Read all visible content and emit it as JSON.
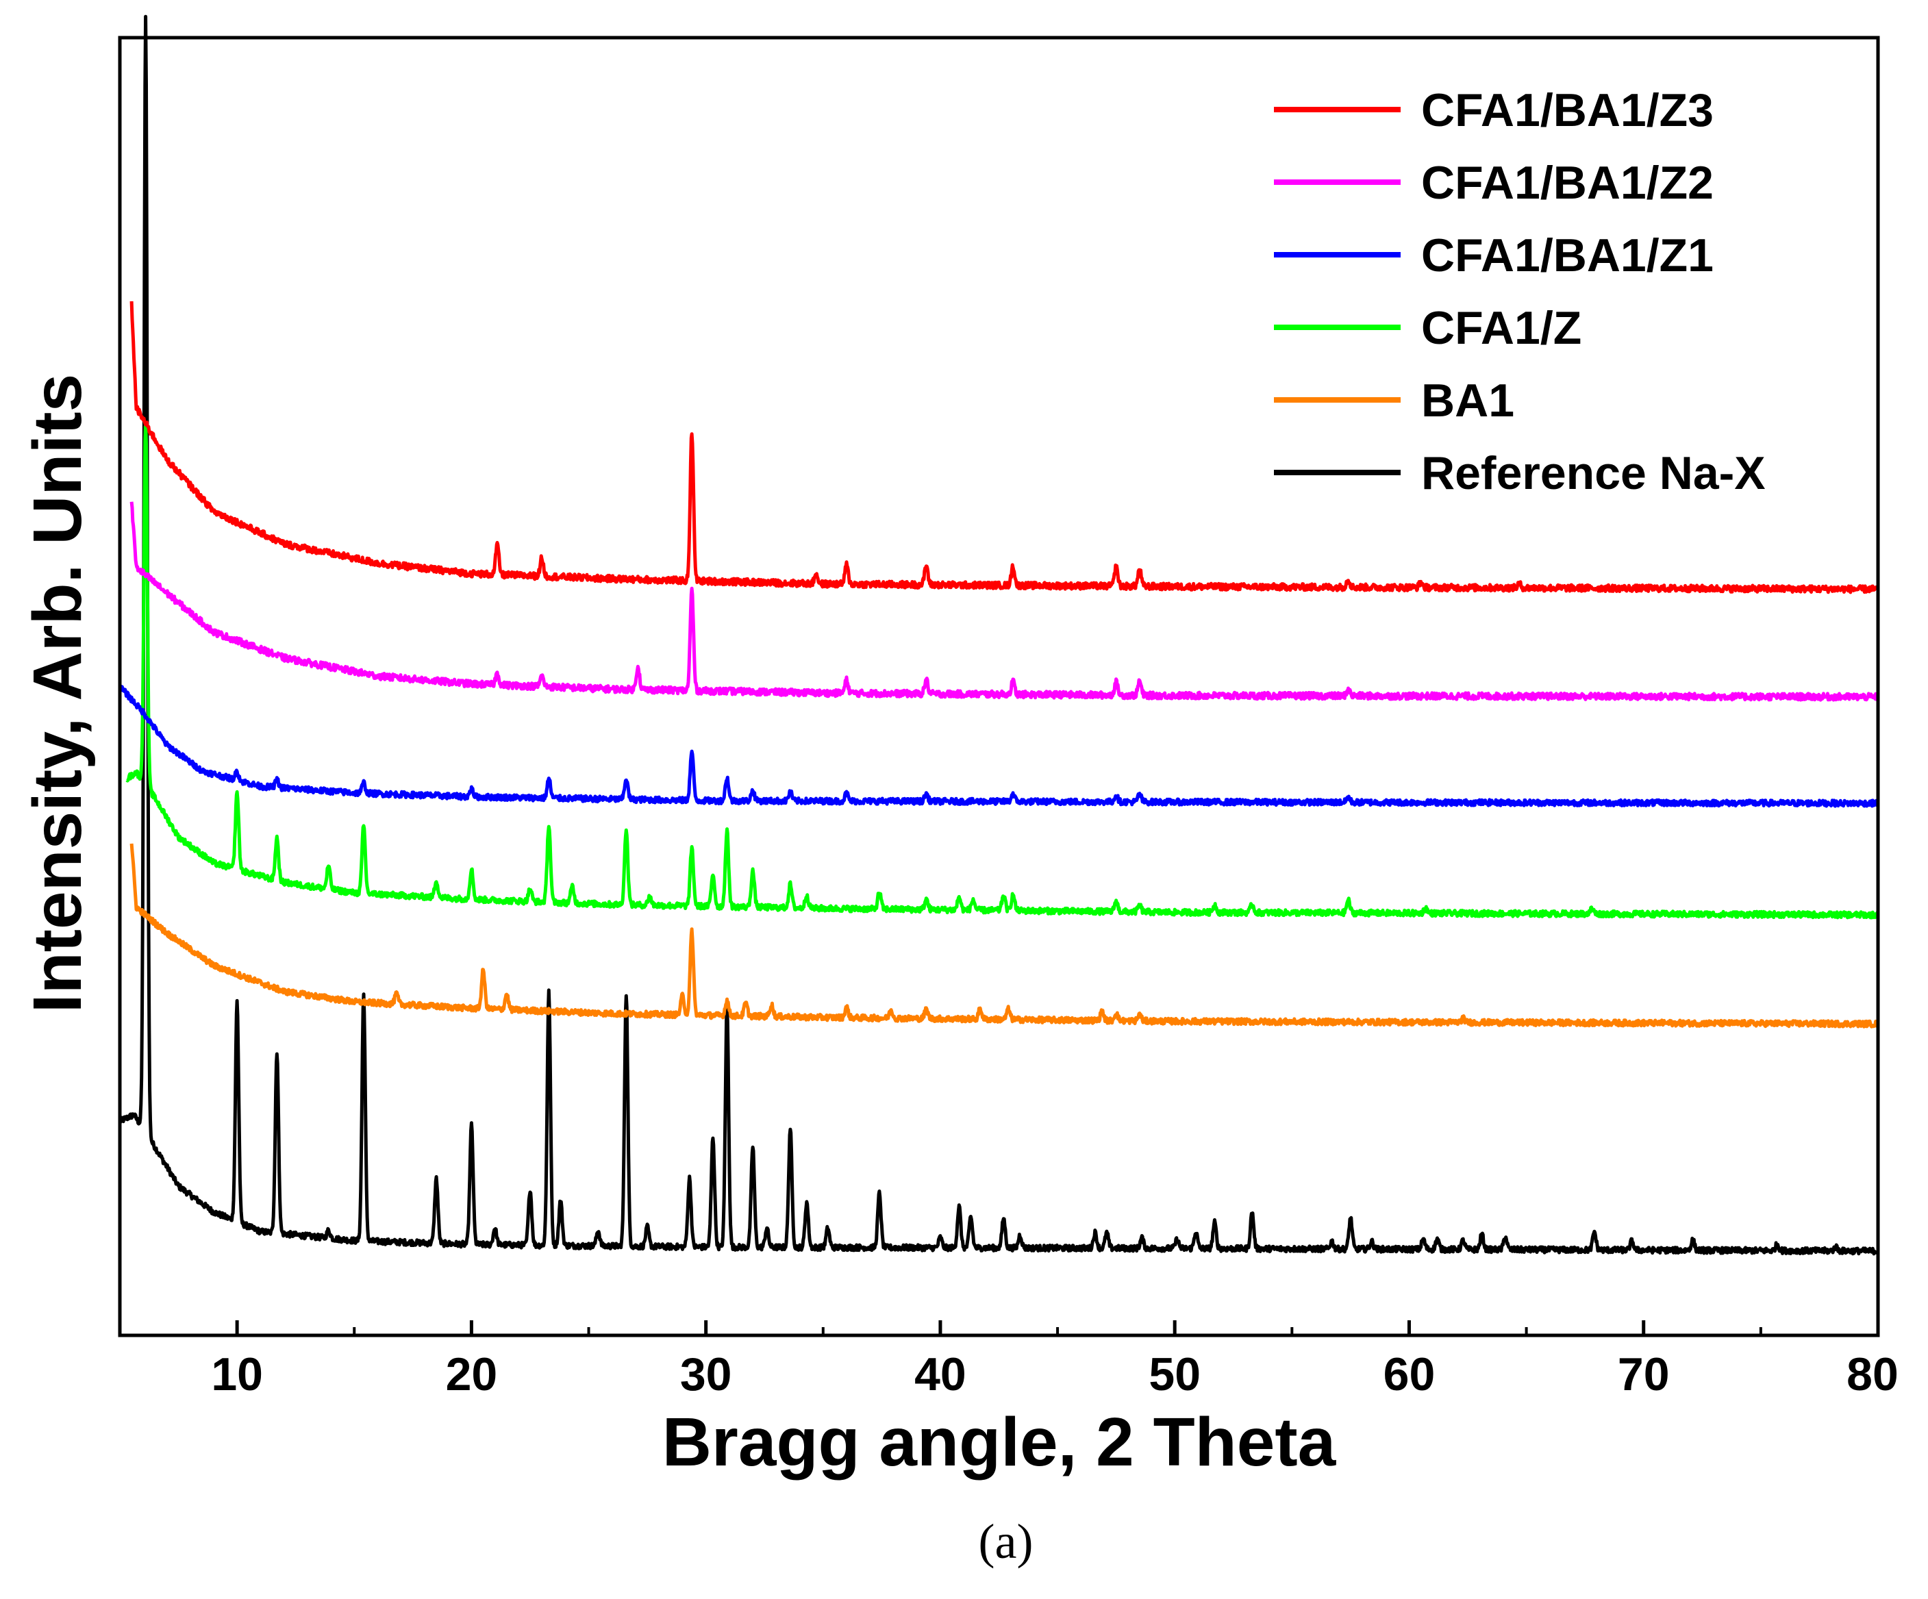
{
  "chart_data": {
    "type": "line",
    "title": "",
    "xlabel": "Bragg angle, 2 Theta",
    "ylabel": "Intensity, Arb. Units",
    "caption": "(a)",
    "xlim": [
      5,
      80
    ],
    "ylim": [
      0,
      100
    ],
    "xticks": [
      10,
      20,
      30,
      40,
      50,
      60,
      70,
      80
    ],
    "xtick_labels": [
      "10",
      "20",
      "30",
      "40",
      "50",
      "60",
      "70",
      "80"
    ],
    "grid": false,
    "legend_position": "top-right",
    "series": [
      {
        "name": "CFA1/BA1/Z3",
        "color": "#ff0000",
        "baseline": 57.5,
        "start_x": 5.5,
        "rise": [
          [
            5.5,
            22
          ],
          [
            5.7,
            14
          ],
          [
            7,
            10
          ],
          [
            9,
            6
          ],
          [
            12,
            3.5
          ],
          [
            16,
            2
          ],
          [
            20,
            1.2
          ],
          [
            26,
            0.8
          ],
          [
            35,
            0.4
          ],
          [
            50,
            0.2
          ],
          [
            80,
            0
          ]
        ],
        "peaks": [
          [
            21.1,
            2.3
          ],
          [
            23.0,
            1.4
          ],
          [
            29.4,
            11.5
          ],
          [
            34.7,
            0.8
          ],
          [
            36.0,
            1.5
          ],
          [
            39.4,
            1.5
          ],
          [
            43.1,
            1.5
          ],
          [
            47.5,
            1.5
          ],
          [
            48.5,
            1.3
          ],
          [
            57.4,
            0.6
          ],
          [
            60.5,
            0.4
          ],
          [
            64.7,
            0.3
          ]
        ],
        "noise": 0.25
      },
      {
        "name": "CFA1/BA1/Z2",
        "color": "#ff00ff",
        "baseline": 49.2,
        "start_x": 5.5,
        "rise": [
          [
            5.5,
            15
          ],
          [
            5.7,
            10
          ],
          [
            7,
            8
          ],
          [
            9,
            5
          ],
          [
            12,
            3
          ],
          [
            16,
            1.6
          ],
          [
            20,
            1
          ],
          [
            26,
            0.6
          ],
          [
            35,
            0.3
          ],
          [
            50,
            0.1
          ],
          [
            80,
            0
          ]
        ],
        "peaks": [
          [
            21.1,
            0.9
          ],
          [
            23.0,
            0.8
          ],
          [
            27.1,
            1.8
          ],
          [
            29.4,
            7.8
          ],
          [
            36.0,
            1.0
          ],
          [
            39.4,
            1.1
          ],
          [
            43.1,
            1.0
          ],
          [
            47.5,
            1.0
          ],
          [
            48.5,
            1.1
          ],
          [
            57.4,
            0.5
          ]
        ],
        "noise": 0.25
      },
      {
        "name": "CFA1/BA1/Z1",
        "color": "#0000ff",
        "baseline": 41.0,
        "start_x": 5.0,
        "rise": [
          [
            5.0,
            9
          ],
          [
            6,
            7
          ],
          [
            7,
            4.5
          ],
          [
            8.5,
            2.5
          ],
          [
            11,
            1.3
          ],
          [
            15,
            0.8
          ],
          [
            20,
            0.5
          ],
          [
            30,
            0.2
          ],
          [
            50,
            0.1
          ],
          [
            80,
            0
          ]
        ],
        "peaks": [
          [
            10.0,
            0.7
          ],
          [
            11.7,
            0.6
          ],
          [
            15.4,
            0.8
          ],
          [
            20.0,
            0.6
          ],
          [
            23.3,
            1.5
          ],
          [
            26.6,
            1.6
          ],
          [
            29.4,
            3.8
          ],
          [
            30.9,
            1.8
          ],
          [
            32.0,
            0.8
          ],
          [
            33.6,
            0.7
          ],
          [
            36.0,
            0.6
          ],
          [
            39.4,
            0.6
          ],
          [
            43.1,
            0.6
          ],
          [
            47.5,
            0.5
          ],
          [
            48.5,
            0.6
          ],
          [
            57.4,
            0.4
          ]
        ],
        "noise": 0.22
      },
      {
        "name": "CFA1/Z",
        "color": "#00ff00",
        "baseline": 32.4,
        "start_x": 5.3,
        "rise": [
          [
            5.3,
            10.5
          ],
          [
            5.7,
            11
          ],
          [
            6.5,
            9
          ],
          [
            7.5,
            6
          ],
          [
            9,
            4
          ],
          [
            12,
            2.5
          ],
          [
            15,
            1.7
          ],
          [
            20,
            1.2
          ],
          [
            26,
            0.8
          ],
          [
            35,
            0.5
          ],
          [
            50,
            0.2
          ],
          [
            80,
            0
          ]
        ],
        "peaks": [
          [
            6.1,
            28
          ],
          [
            10.0,
            6.0
          ],
          [
            11.7,
            3.3
          ],
          [
            13.9,
            1.8
          ],
          [
            15.4,
            5.2
          ],
          [
            18.5,
            1.3
          ],
          [
            20.0,
            2.3
          ],
          [
            22.5,
            1.0
          ],
          [
            23.3,
            6.0
          ],
          [
            24.3,
            1.3
          ],
          [
            26.6,
            5.8
          ],
          [
            27.6,
            0.7
          ],
          [
            29.4,
            4.5
          ],
          [
            30.3,
            2.5
          ],
          [
            30.9,
            5.8
          ],
          [
            32.0,
            2.8
          ],
          [
            33.6,
            1.8
          ],
          [
            34.3,
            1.0
          ],
          [
            37.4,
            1.3
          ],
          [
            39.4,
            0.8
          ],
          [
            40.8,
            1.0
          ],
          [
            41.4,
            0.8
          ],
          [
            42.7,
            1.2
          ],
          [
            43.1,
            1.2
          ],
          [
            47.5,
            0.8
          ],
          [
            48.5,
            0.5
          ],
          [
            51.7,
            0.6
          ],
          [
            53.3,
            0.6
          ],
          [
            57.4,
            1.0
          ],
          [
            60.7,
            0.4
          ],
          [
            67.8,
            0.4
          ]
        ],
        "noise": 0.22
      },
      {
        "name": "BA1",
        "color": "#ff8000",
        "baseline": 24.0,
        "start_x": 5.5,
        "rise": [
          [
            5.5,
            14
          ],
          [
            5.7,
            9
          ],
          [
            7,
            7
          ],
          [
            9,
            4.5
          ],
          [
            12,
            2.5
          ],
          [
            15,
            1.7
          ],
          [
            20,
            1.2
          ],
          [
            26,
            0.8
          ],
          [
            35,
            0.5
          ],
          [
            50,
            0.2
          ],
          [
            80,
            0
          ]
        ],
        "peaks": [
          [
            16.8,
            0.8
          ],
          [
            20.5,
            3.0
          ],
          [
            21.5,
            1.2
          ],
          [
            29.0,
            1.5
          ],
          [
            29.4,
            6.5
          ],
          [
            30.9,
            1.2
          ],
          [
            31.7,
            1.0
          ],
          [
            32.8,
            0.9
          ],
          [
            36.0,
            0.8
          ],
          [
            37.9,
            0.6
          ],
          [
            39.4,
            0.7
          ],
          [
            41.7,
            0.8
          ],
          [
            42.9,
            0.8
          ],
          [
            46.9,
            0.7
          ],
          [
            47.5,
            0.6
          ],
          [
            48.5,
            0.5
          ],
          [
            62.3,
            0.3
          ]
        ],
        "noise": 0.22
      },
      {
        "name": "Reference Na-X",
        "color": "#000000",
        "baseline": 6.5,
        "start_x": 5.0,
        "rise": [
          [
            5.0,
            10
          ],
          [
            5.6,
            10.5
          ],
          [
            6.5,
            8
          ],
          [
            7.5,
            5
          ],
          [
            9,
            3
          ],
          [
            11,
            1.5
          ],
          [
            15,
            0.8
          ],
          [
            20,
            0.5
          ],
          [
            30,
            0.3
          ],
          [
            50,
            0.2
          ],
          [
            80,
            0
          ]
        ],
        "peaks": [
          [
            6.1,
            86
          ],
          [
            10.0,
            17
          ],
          [
            11.7,
            14
          ],
          [
            13.9,
            0.6
          ],
          [
            15.4,
            19
          ],
          [
            18.5,
            5.0
          ],
          [
            20.0,
            9.2
          ],
          [
            21.0,
            1.3
          ],
          [
            22.5,
            4.3
          ],
          [
            23.3,
            19.5
          ],
          [
            23.8,
            3.5
          ],
          [
            25.4,
            1.2
          ],
          [
            26.6,
            19.5
          ],
          [
            27.5,
            1.5
          ],
          [
            29.3,
            5.3
          ],
          [
            30.3,
            8.5
          ],
          [
            30.9,
            18.5
          ],
          [
            32.0,
            7.8
          ],
          [
            32.6,
            1.5
          ],
          [
            33.6,
            9.2
          ],
          [
            34.3,
            3.5
          ],
          [
            35.2,
            1.5
          ],
          [
            37.4,
            4.2
          ],
          [
            40.0,
            0.8
          ],
          [
            40.8,
            3.2
          ],
          [
            41.3,
            2.4
          ],
          [
            42.7,
            2.3
          ],
          [
            43.4,
            1.0
          ],
          [
            46.6,
            1.2
          ],
          [
            47.1,
            1.2
          ],
          [
            48.6,
            0.8
          ],
          [
            50.1,
            0.7
          ],
          [
            50.9,
            1.3
          ],
          [
            51.7,
            2.0
          ],
          [
            53.3,
            2.8
          ],
          [
            56.7,
            0.6
          ],
          [
            57.5,
            2.4
          ],
          [
            58.4,
            0.6
          ],
          [
            60.6,
            0.8
          ],
          [
            61.2,
            0.8
          ],
          [
            62.3,
            0.7
          ],
          [
            63.1,
            1.2
          ],
          [
            64.1,
            1.0
          ],
          [
            67.9,
            1.4
          ],
          [
            69.5,
            0.7
          ],
          [
            72.1,
            0.8
          ],
          [
            75.7,
            0.5
          ],
          [
            78.2,
            0.3
          ]
        ],
        "noise": 0.22
      }
    ]
  }
}
